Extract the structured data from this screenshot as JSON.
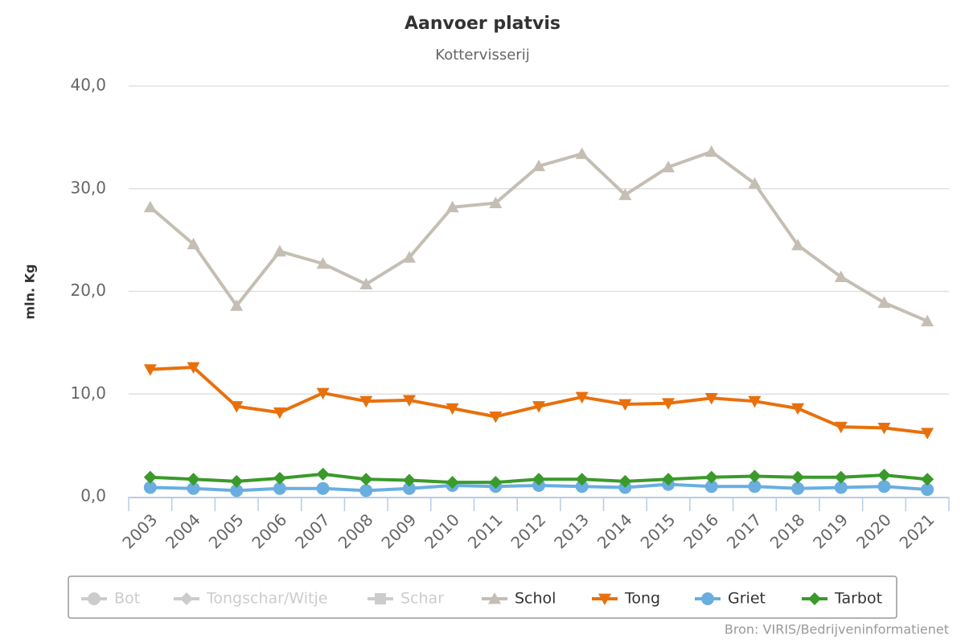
{
  "chart_data": {
    "type": "line",
    "title": "Aanvoer platvis",
    "subtitle": "Kottervisserij",
    "y_label": "mln. Kg",
    "source": "Bron: VIRIS/Bedrijveninformatienet",
    "categories": [
      "2003",
      "2004",
      "2005",
      "2006",
      "2007",
      "2008",
      "2009",
      "2010",
      "2011",
      "2012",
      "2013",
      "2014",
      "2015",
      "2016",
      "2017",
      "2018",
      "2019",
      "2020",
      "2021"
    ],
    "ylim": [
      0,
      40
    ],
    "yticks": [
      {
        "value": 0,
        "label": "0,0"
      },
      {
        "value": 10,
        "label": "10,0"
      },
      {
        "value": 20,
        "label": "20,0"
      },
      {
        "value": 30,
        "label": "30,0"
      },
      {
        "value": 40,
        "label": "40,0"
      }
    ],
    "grid": true,
    "legend_hidden": [
      {
        "name": "Bot",
        "marker": "circle"
      },
      {
        "name": "Tongschar/Witje",
        "marker": "diamond"
      },
      {
        "name": "Schar",
        "marker": "square"
      }
    ],
    "series": [
      {
        "name": "Schol",
        "color": "#c4beb4",
        "marker": "triangle",
        "values": [
          28.2,
          24.6,
          18.6,
          23.9,
          22.7,
          20.7,
          23.3,
          28.2,
          28.6,
          32.2,
          33.4,
          29.4,
          32.1,
          33.6,
          30.5,
          24.5,
          21.4,
          18.9,
          17.1
        ]
      },
      {
        "name": "Tong",
        "color": "#e8700c",
        "marker": "triangle-down",
        "values": [
          12.4,
          12.6,
          8.8,
          8.2,
          10.1,
          9.3,
          9.4,
          8.6,
          7.8,
          8.8,
          9.7,
          9.0,
          9.1,
          9.6,
          9.3,
          8.6,
          6.8,
          6.7,
          6.2
        ]
      },
      {
        "name": "Griet",
        "color": "#6aaee0",
        "marker": "circle",
        "values": [
          0.9,
          0.8,
          0.6,
          0.8,
          0.8,
          0.6,
          0.8,
          1.1,
          1.0,
          1.1,
          1.0,
          0.9,
          1.2,
          1.0,
          1.0,
          0.8,
          0.9,
          1.0,
          0.7
        ]
      },
      {
        "name": "Tarbot",
        "color": "#3a9a2a",
        "marker": "diamond",
        "values": [
          1.9,
          1.7,
          1.5,
          1.8,
          2.2,
          1.7,
          1.6,
          1.4,
          1.4,
          1.7,
          1.7,
          1.5,
          1.7,
          1.9,
          2.0,
          1.9,
          1.9,
          2.1,
          1.7
        ]
      }
    ]
  }
}
